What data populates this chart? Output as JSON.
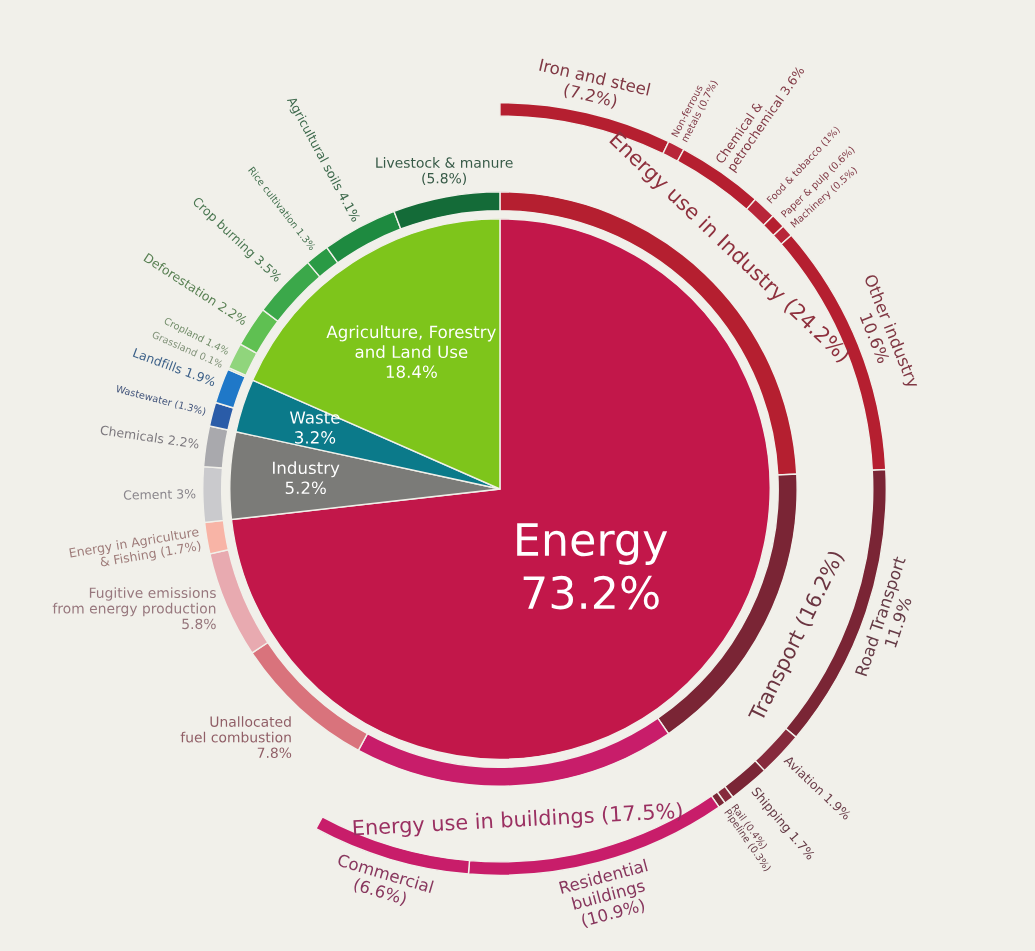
{
  "chart_data": {
    "type": "pie",
    "series": [
      {
        "values": [
          73.2,
          5.2,
          3.2,
          18.4
        ],
        "value_labels": [
          "Energy 73.2%",
          "Industry 5.2%",
          "Waste 3.2%",
          "Agriculture, Forestry and Land Use 18.4%"
        ],
        "colors": [
          "#c2174a",
          "#7b7b78",
          "#0b7a8a",
          "#7ec51b"
        ]
      },
      {
        "type": "donut",
        "values": [
          24.2,
          16.2,
          17.5,
          7.8,
          5.8,
          1.7,
          3,
          2.2,
          1.3,
          1.9,
          0.1,
          1.4,
          2.2,
          3.5,
          1.3,
          4.1,
          5.8
        ],
        "value_labels": [
          "Energy use in Industry (24.2%)",
          "Transport (16.2%)",
          "Energy use in buildings (17.5%)",
          "Unallocated fuel combustion 7.8%",
          "Fugitive emissions from energy production 5.8%",
          "Energy in Agriculture & Fishing (1.7%)",
          "Cement 3%",
          "Chemicals 2.2%",
          "Wastewater (1.3%)",
          "Landfills 1.9%",
          "Grassland 0.1%",
          "Cropland 1.4%",
          "Deforestation 2.2%",
          "Crop burning 3.5%",
          "Rice cultivation 1.3%",
          "Agricultural soils 4.1%",
          "Livestock & manure (5.8%)"
        ],
        "colors": [
          "#b51f30",
          "#7a2535",
          "#c81d6a",
          "#d9737c",
          "#e8aab0",
          "#f8b4a6",
          "#cacacd",
          "#a9a9ad",
          "#2a5ca8",
          "#1f78c8",
          "#b4e3a2",
          "#90d57c",
          "#5fc052",
          "#3ba84a",
          "#2a9a45",
          "#1e8a40",
          "#146b38"
        ]
      },
      {
        "type": "donut",
        "values": [
          7.2,
          0.7,
          3.6,
          1,
          0.6,
          0.5,
          10.6,
          11.9,
          1.9,
          1.7,
          0.4,
          0.3,
          10.9,
          6.6
        ],
        "value_labels": [
          "Iron and steel (7.2%)",
          "Non-ferrous metals (0.7%)",
          "Chemical & petrochemical 3.6%",
          "Food & tobacco (1%)",
          "Paper & pulp (0.6%)",
          "Machinery (0.5%)",
          "Other industry 10.6%",
          "Road Transport 11.9%",
          "Aviation 1.9%",
          "Shipping 1.7%",
          "Rail (0.4%)",
          "Pipeline (0.3%)",
          "Residential buildings (10.9%)",
          "Commercial (6.6%)"
        ],
        "colors": [
          "#b51f30",
          "#b8263a",
          "#b51f30",
          "#b8263a",
          "#b51f30",
          "#b8263a",
          "#b51f30",
          "#7a2535",
          "#862a3c",
          "#7a2535",
          "#862a3c",
          "#7a2535",
          "#c81d6a",
          "#c81d6a"
        ]
      }
    ]
  }
}
